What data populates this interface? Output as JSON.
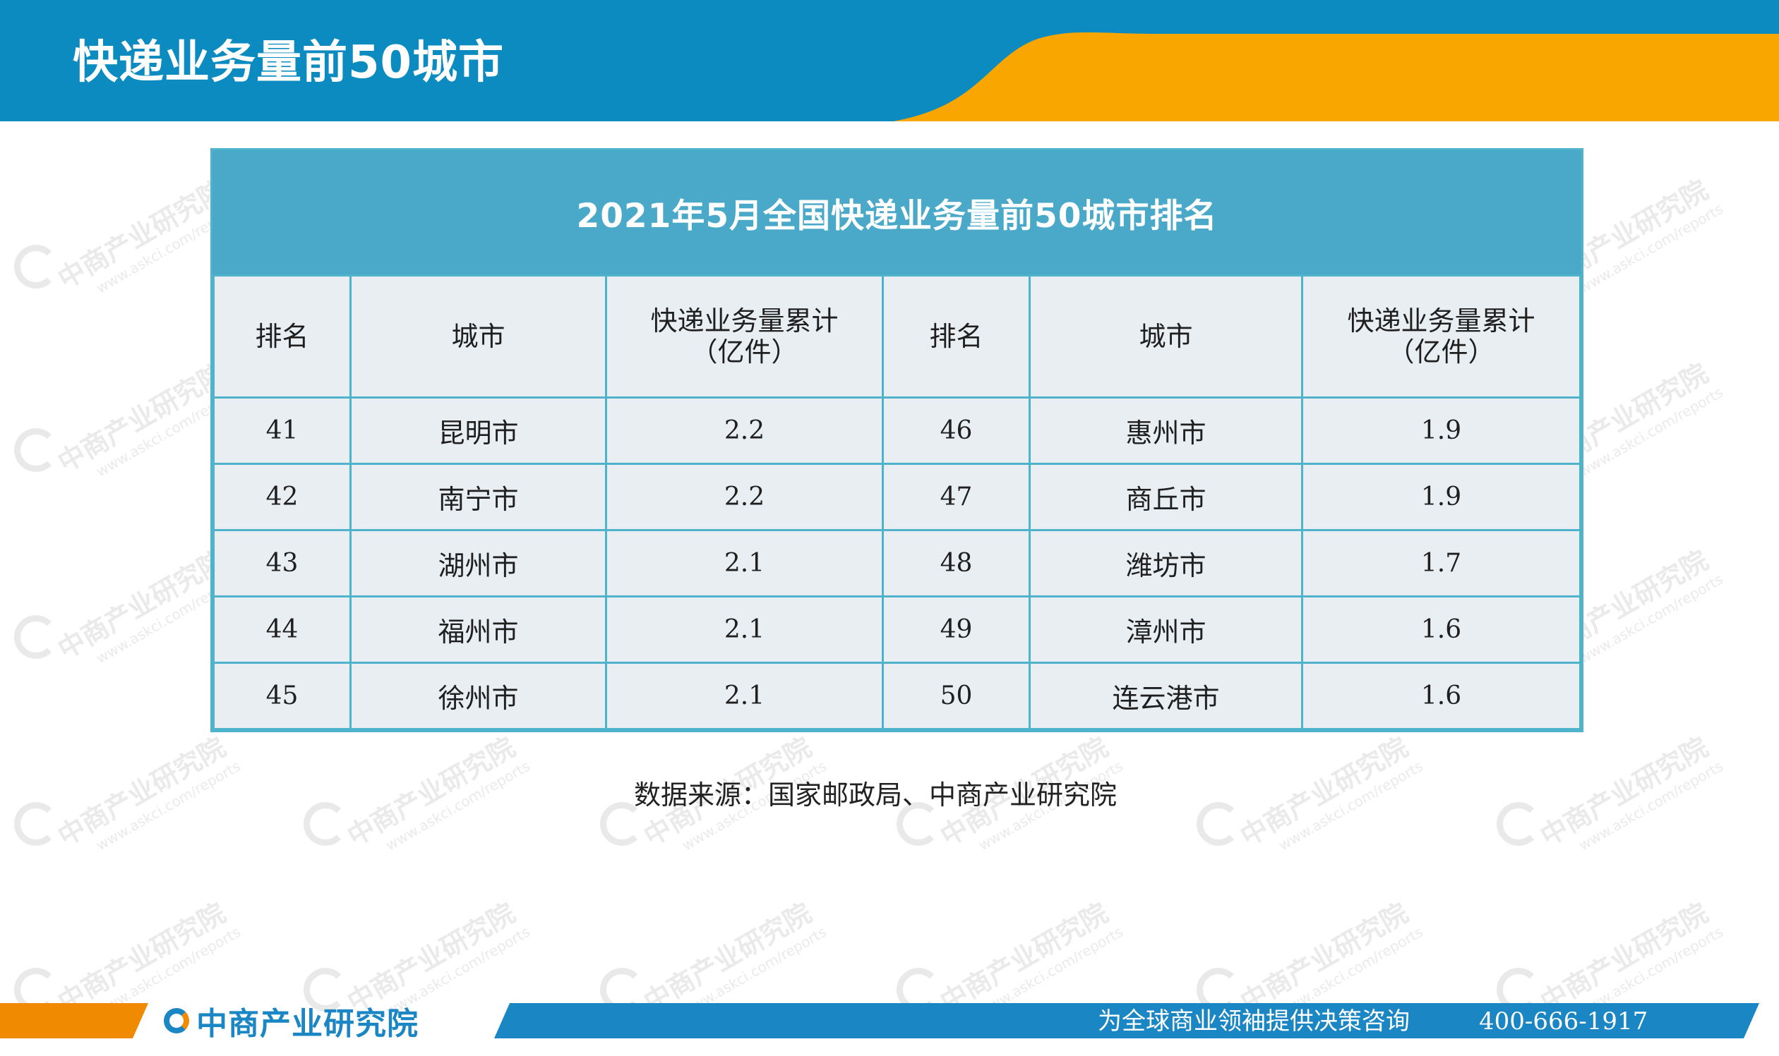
{
  "header": {
    "title": "快递业务量前50城市"
  },
  "colors": {
    "header_blue": "#0b8bc0",
    "header_orange": "#f9a600",
    "table_title_bg": "#4aa9c8",
    "table_border": "#4fb3cc",
    "cell_bg": "#e9eef2",
    "footer_blue": "#1b86c4",
    "footer_orange": "#f08a00"
  },
  "table": {
    "title": "2021年5月全国快递业务量前50城市排名",
    "headers": {
      "rank": "排名",
      "city": "城市",
      "volume_line1": "快递业务量累计",
      "volume_line2": "（亿件）"
    },
    "rows": [
      {
        "rank_a": "41",
        "city_a": "昆明市",
        "vol_a": "2.2",
        "rank_b": "46",
        "city_b": "惠州市",
        "vol_b": "1.9"
      },
      {
        "rank_a": "42",
        "city_a": "南宁市",
        "vol_a": "2.2",
        "rank_b": "47",
        "city_b": "商丘市",
        "vol_b": "1.9"
      },
      {
        "rank_a": "43",
        "city_a": "湖州市",
        "vol_a": "2.1",
        "rank_b": "48",
        "city_b": "潍坊市",
        "vol_b": "1.7"
      },
      {
        "rank_a": "44",
        "city_a": "福州市",
        "vol_a": "2.1",
        "rank_b": "49",
        "city_b": "漳州市",
        "vol_b": "1.6"
      },
      {
        "rank_a": "45",
        "city_a": "徐州市",
        "vol_a": "2.1",
        "rank_b": "50",
        "city_b": "连云港市",
        "vol_b": "1.6"
      }
    ]
  },
  "source": "数据来源：国家邮政局、中商产业研究院",
  "watermark": {
    "main": "中商产业研究院",
    "sub": "www.askci.com/reports"
  },
  "footer": {
    "logo_text": "中商产业研究院",
    "slogan": "为全球商业领袖提供决策咨询",
    "phone": "400-666-1917"
  }
}
